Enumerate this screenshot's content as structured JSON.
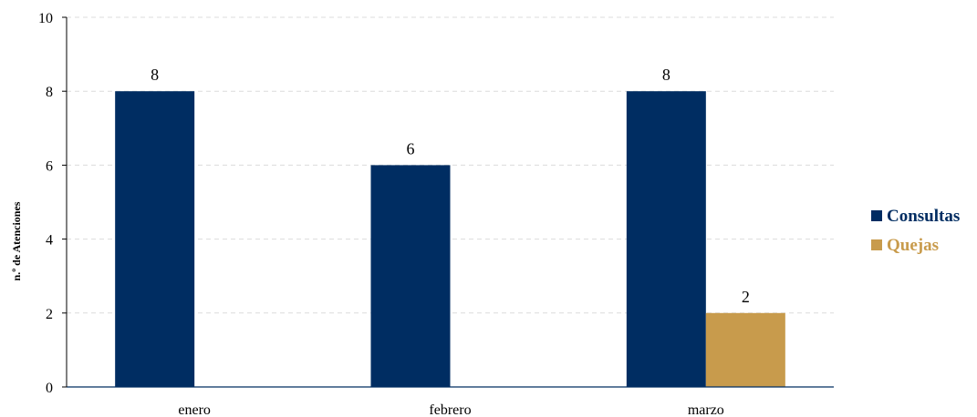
{
  "chart_data": {
    "type": "bar",
    "title": "",
    "xlabel": "",
    "ylabel": "n.º de Atenciones",
    "categories": [
      "enero",
      "febrero",
      "marzo"
    ],
    "series": [
      {
        "name": "Consultas",
        "color": "#002D62",
        "values": [
          8,
          6,
          8
        ]
      },
      {
        "name": "Quejas",
        "color": "#C89B4C",
        "values": [
          null,
          null,
          2
        ]
      }
    ],
    "ylim": [
      0,
      10
    ],
    "yticks": [
      0,
      2,
      4,
      6,
      8,
      10
    ],
    "grid": true,
    "legend_position": "right"
  }
}
